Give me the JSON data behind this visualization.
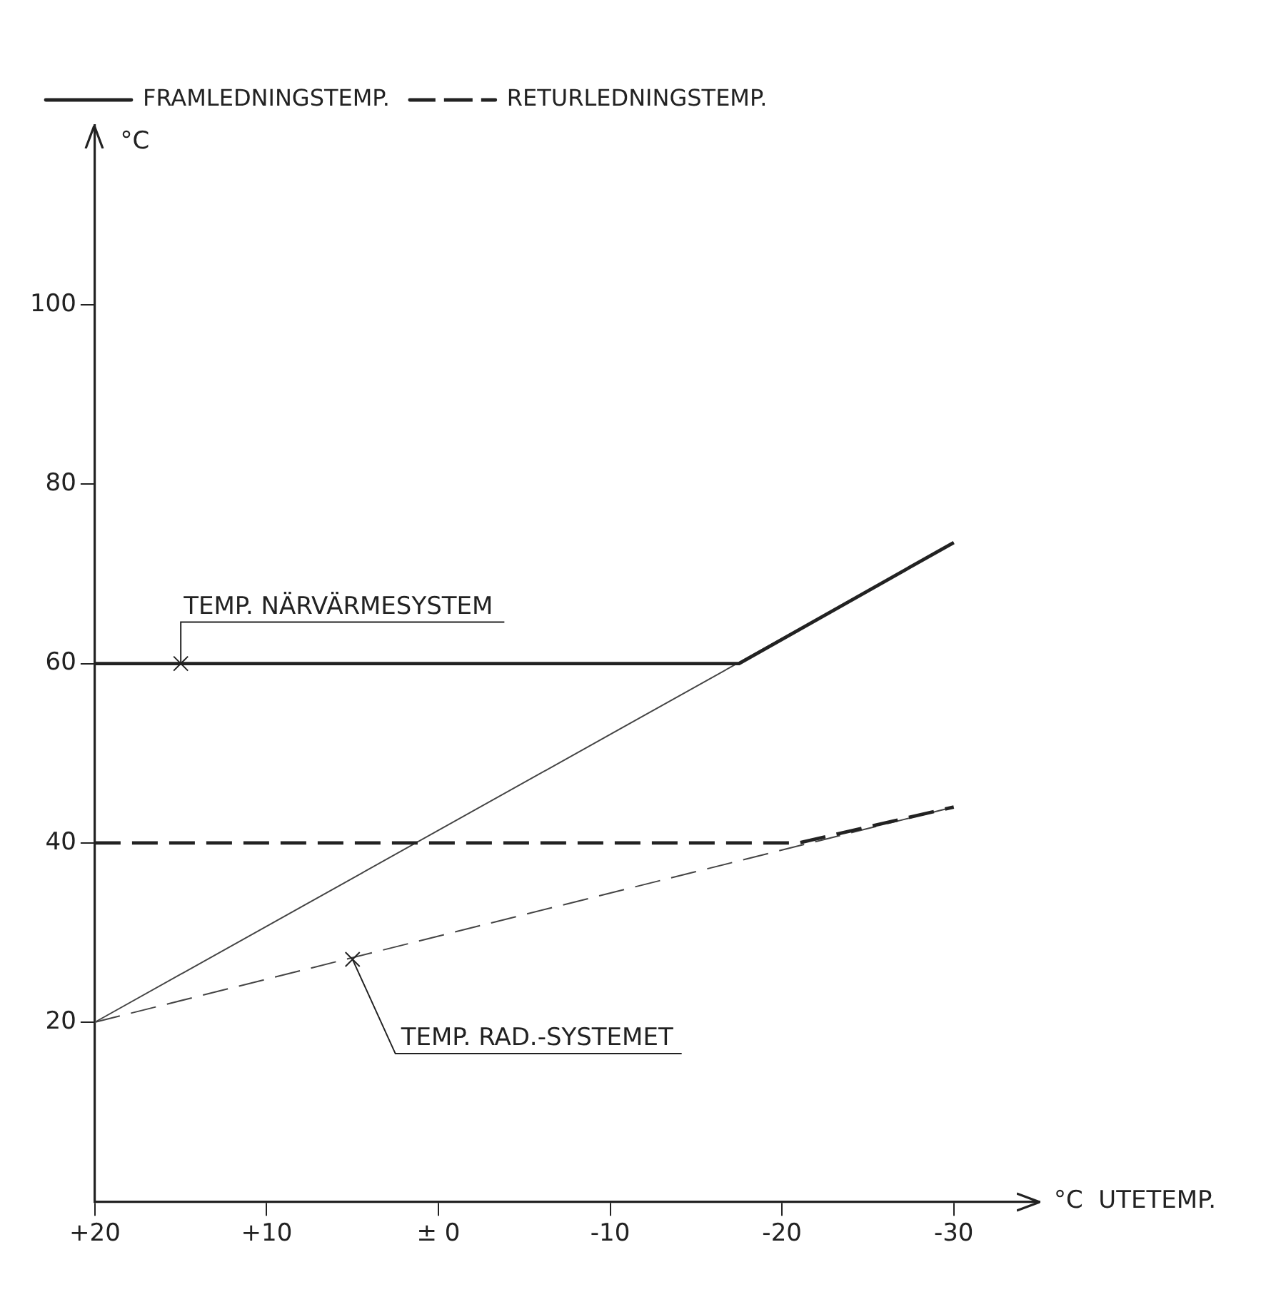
{
  "chart_data": {
    "type": "line",
    "xlabel": "°C  UTETEMP.",
    "ylabel": "°C",
    "xlim": [
      20,
      -35
    ],
    "ylim": [
      0,
      120
    ],
    "xticks": [
      {
        "value": 20,
        "label": "+20"
      },
      {
        "value": 10,
        "label": "+10"
      },
      {
        "value": 0,
        "label": "± 0"
      },
      -10,
      -20,
      -30
    ],
    "yticks": [
      20,
      40,
      60,
      80,
      100
    ],
    "grid": false,
    "legend": "top left",
    "marker": "none",
    "series": [
      {
        "name": "FRAMLEDNINGSTEMP.",
        "color": "#222222",
        "x": [
          20,
          -17.5,
          -30
        ],
        "values": [
          60,
          60,
          73.5
        ],
        "line_style": "solid"
      },
      {
        "name": "RETURLEDNINGSTEMP.",
        "color": "#222222",
        "x": [
          20,
          -21,
          -30
        ],
        "values": [
          40,
          40,
          44
        ],
        "line_style": "dashed"
      },
      {
        "color": "#444444",
        "x": [
          20,
          -30
        ],
        "values": [
          20,
          73.5
        ],
        "line_style": "solid"
      },
      {
        "color": "#444444",
        "x": [
          20,
          -30
        ],
        "values": [
          20,
          44
        ],
        "line_style": "dashed"
      }
    ],
    "annotations": [
      {
        "text": "TEMP. NÄRVÄRMESYSTEM",
        "x": 15,
        "y": 60
      },
      {
        "text": "TEMP. RAD.-SYSTEMET",
        "x": 5,
        "y": 27
      }
    ]
  }
}
